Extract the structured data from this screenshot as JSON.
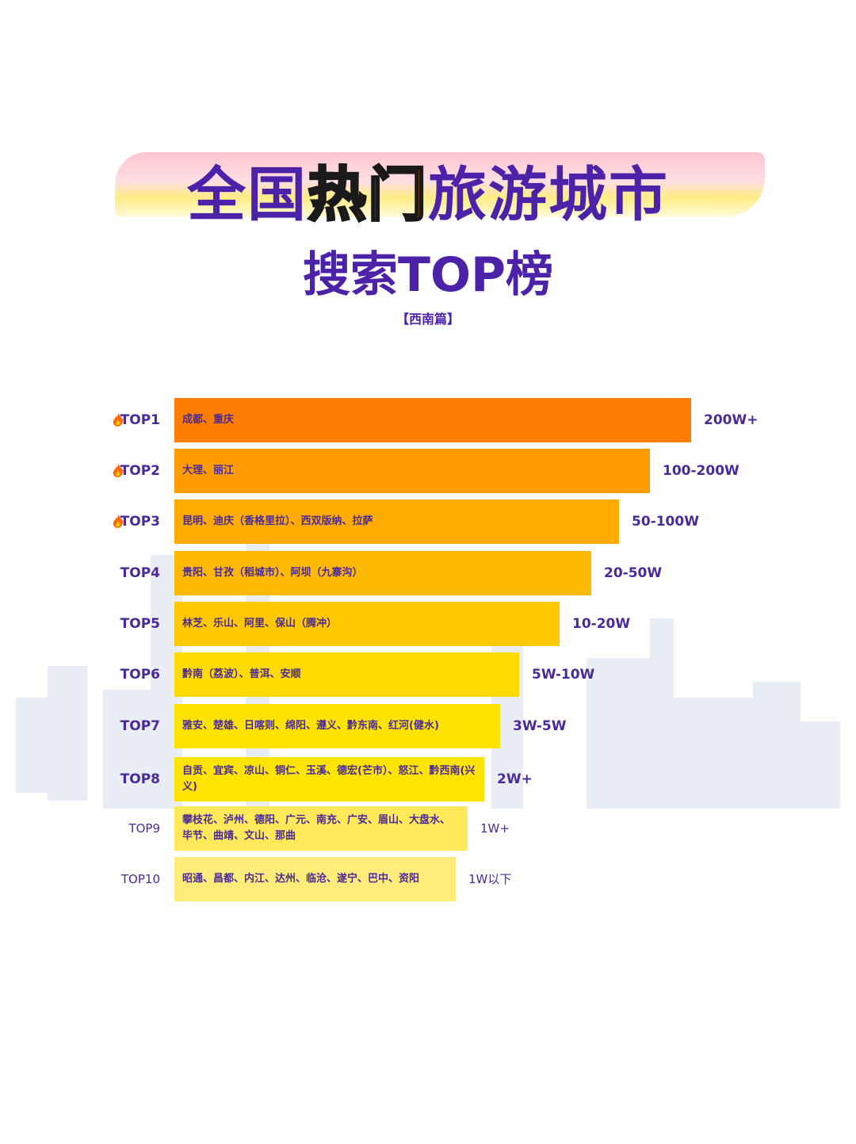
{
  "header": {
    "title_pre": "全国",
    "title_hot": "热门",
    "title_post": "旅游城市",
    "subtitle": "搜索TOP榜",
    "section": "【西南篇】"
  },
  "rows": [
    {
      "rank": "TOP1",
      "cities": "成都、重庆",
      "volume": "200W+"
    },
    {
      "rank": "TOP2",
      "cities": "大理、丽江",
      "volume": "100-200W"
    },
    {
      "rank": "TOP3",
      "cities": "昆明、迪庆（香格里拉）、西双版纳、拉萨",
      "volume": "50-100W"
    },
    {
      "rank": "TOP4",
      "cities": "贵阳、甘孜（稻城市）、阿坝（九寨沟）",
      "volume": "20-50W"
    },
    {
      "rank": "TOP5",
      "cities": "林芝、乐山、阿里、保山（腾冲）",
      "volume": "10-20W"
    },
    {
      "rank": "TOP6",
      "cities": "黔南（荔波）、普洱、安顺",
      "volume": "5W-10W"
    },
    {
      "rank": "TOP7",
      "cities": "雅安、楚雄、日喀则、绵阳、遵义、黔东南、红河(健水)",
      "volume": "3W-5W"
    },
    {
      "rank": "TOP8",
      "cities": "自贡、宜宾、凉山、铜仁、玉溪、德宏(芒市）、怒江、黔西南(兴义)",
      "volume": "2W+"
    },
    {
      "rank": "TOP9",
      "cities": "攀枝花、泸州、德阳、广元、南充、广安、眉山、大盘水、毕节、曲靖、文山、那曲",
      "volume": "1W+"
    },
    {
      "rank": "TOP10",
      "cities": "昭通、昌都、内江、达州、临沧、遂宁、巴中、资阳",
      "volume": "1W以下"
    }
  ]
}
